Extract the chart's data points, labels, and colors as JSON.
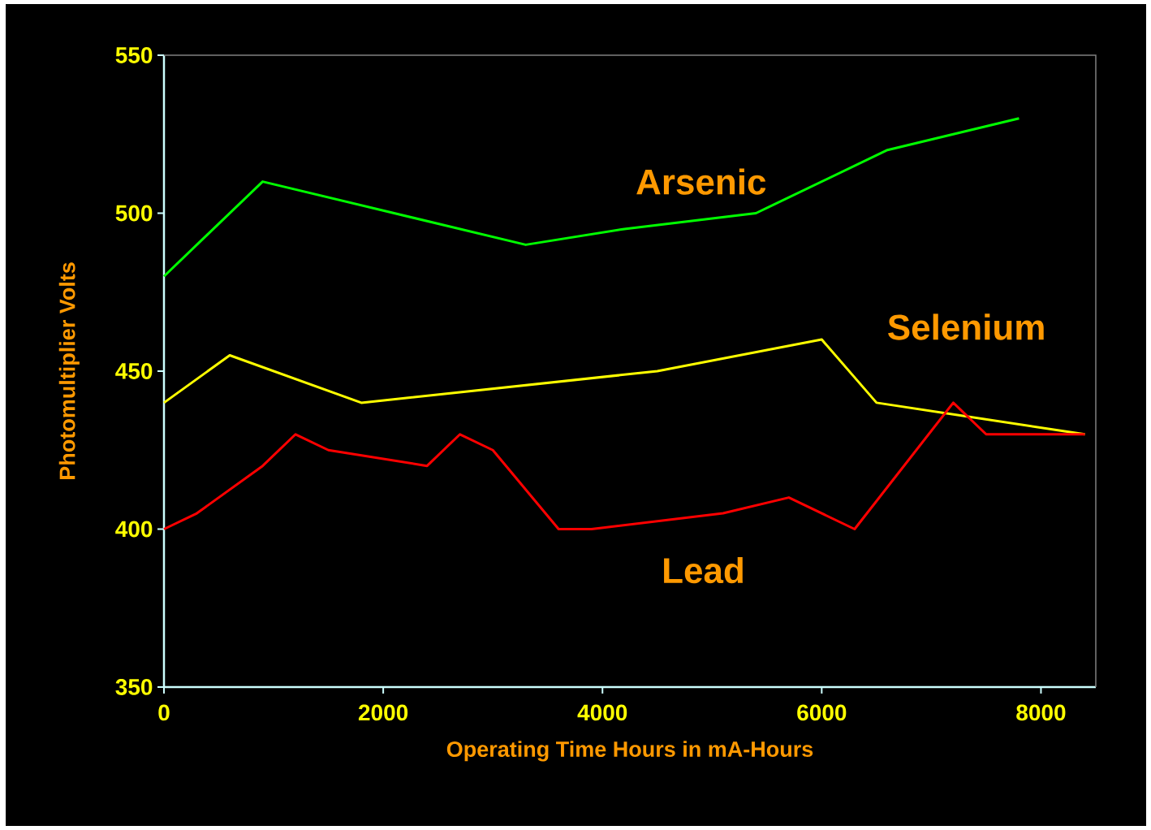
{
  "chart_data": {
    "type": "line",
    "xlabel": "Operating Time Hours in mA-Hours",
    "ylabel": "Photomultiplier Volts",
    "xlim": [
      0,
      8500
    ],
    "xticks": [
      0,
      2000,
      4000,
      6000,
      8000
    ],
    "ylim": [
      350,
      550
    ],
    "yticks": [
      350,
      400,
      450,
      500,
      550
    ],
    "grid": false,
    "legend": false,
    "marker": "none",
    "line_style": "solid",
    "series": [
      {
        "name": "Arsenic",
        "color": "#00ff00",
        "x": [
          0,
          900,
          3300,
          4200,
          5400,
          6600,
          7800
        ],
        "values": [
          480,
          510,
          490,
          495,
          500,
          520,
          530
        ]
      },
      {
        "name": "Selenium",
        "color": "#ffff00",
        "x": [
          0,
          600,
          1800,
          4500,
          6000,
          6500,
          8400
        ],
        "values": [
          440,
          455,
          440,
          450,
          460,
          440,
          430
        ]
      },
      {
        "name": "Lead",
        "color": "#ff0000",
        "x": [
          0,
          300,
          900,
          1200,
          1500,
          2400,
          2700,
          3000,
          3600,
          3900,
          5100,
          5700,
          6300,
          7200,
          7500,
          8400
        ],
        "values": [
          400,
          405,
          420,
          430,
          425,
          420,
          430,
          425,
          400,
          400,
          405,
          410,
          400,
          440,
          430,
          430
        ]
      }
    ]
  }
}
